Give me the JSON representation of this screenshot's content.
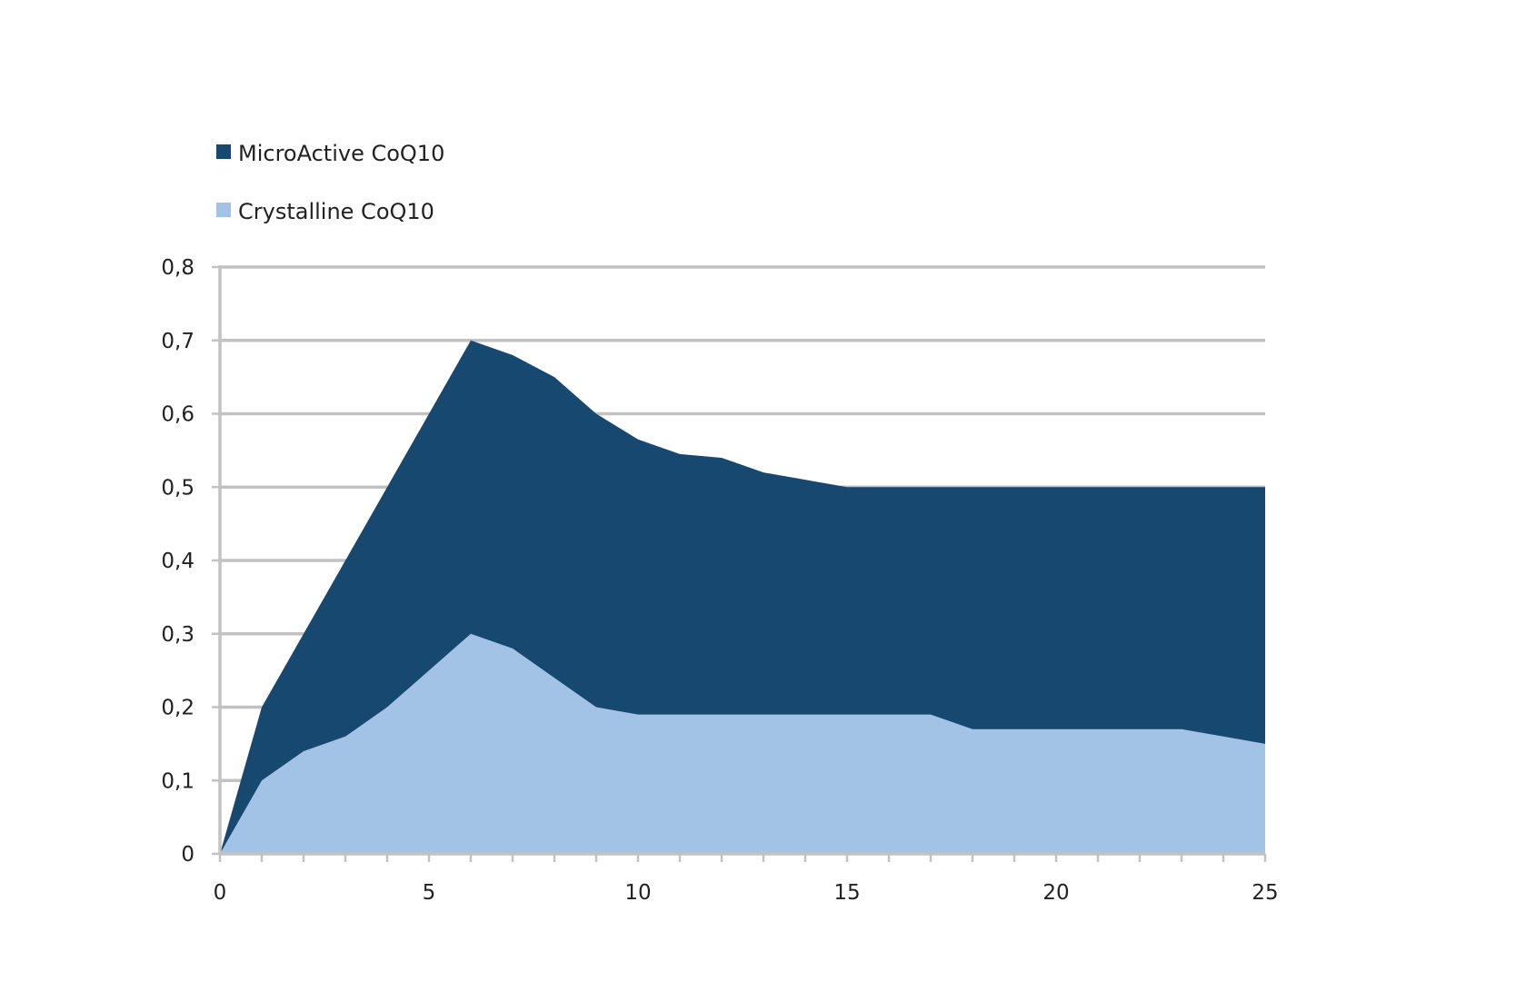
{
  "chart_data": {
    "type": "area",
    "title": "",
    "xlabel": "",
    "ylabel": "",
    "x": [
      0,
      1,
      2,
      3,
      4,
      5,
      6,
      7,
      8,
      9,
      10,
      11,
      12,
      13,
      14,
      15,
      16,
      17,
      18,
      19,
      20,
      21,
      22,
      23,
      24,
      25
    ],
    "xlim": [
      0,
      25
    ],
    "ylim": [
      0,
      0.8
    ],
    "x_ticks": [
      0,
      5,
      10,
      15,
      20,
      25
    ],
    "x_tick_labels": [
      "0",
      "5",
      "10",
      "15",
      "20",
      "25"
    ],
    "y_ticks": [
      0,
      0.1,
      0.2,
      0.3,
      0.4,
      0.5,
      0.6,
      0.7,
      0.8
    ],
    "y_tick_labels": [
      "0",
      "0,1",
      "0,2",
      "0,3",
      "0,4",
      "0,5",
      "0,6",
      "0,7",
      "0,8"
    ],
    "grid": true,
    "legend_position": "top-left",
    "series": [
      {
        "name": "MicroActive CoQ10",
        "color": "#174870",
        "values": [
          0,
          0.2,
          0.3,
          0.4,
          0.5,
          0.6,
          0.7,
          0.68,
          0.65,
          0.6,
          0.565,
          0.545,
          0.54,
          0.52,
          0.51,
          0.5,
          0.5,
          0.5,
          0.5,
          0.5,
          0.5,
          0.5,
          0.5,
          0.5,
          0.5,
          0.5
        ]
      },
      {
        "name": "Crystalline CoQ10",
        "color": "#a2c2e6",
        "values": [
          0,
          0.1,
          0.14,
          0.16,
          0.2,
          0.25,
          0.3,
          0.28,
          0.24,
          0.2,
          0.19,
          0.19,
          0.19,
          0.19,
          0.19,
          0.19,
          0.19,
          0.19,
          0.17,
          0.17,
          0.17,
          0.17,
          0.17,
          0.17,
          0.16,
          0.15
        ]
      }
    ]
  }
}
